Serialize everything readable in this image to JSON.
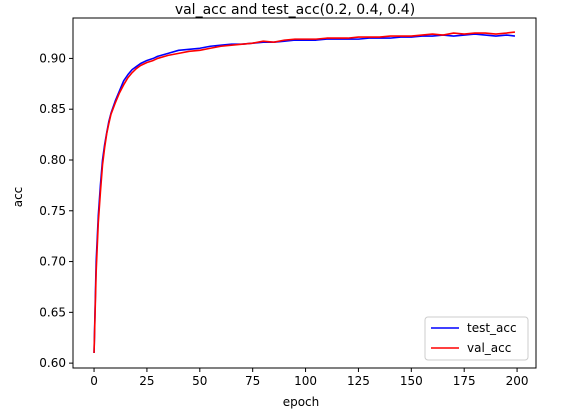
{
  "chart_data": {
    "type": "line",
    "title": "val_acc and test_acc(0.2, 0.4, 0.4)",
    "xlabel": "epoch",
    "ylabel": "acc",
    "xlim": [
      -9.95,
      208.95
    ],
    "ylim": [
      0.5952,
      0.9398
    ],
    "xticks": [
      0,
      25,
      50,
      75,
      100,
      125,
      150,
      175,
      200
    ],
    "xtick_labels": [
      "0",
      "25",
      "50",
      "75",
      "100",
      "125",
      "150",
      "175",
      "200"
    ],
    "yticks": [
      0.6,
      0.65,
      0.7,
      0.75,
      0.8,
      0.85,
      0.9
    ],
    "ytick_labels": [
      "0.60",
      "0.65",
      "0.70",
      "0.75",
      "0.80",
      "0.85",
      "0.90"
    ],
    "grid": false,
    "legend_position": "lower-right",
    "series": [
      {
        "name": "test_acc",
        "color": "#0000ff",
        "x": [
          0,
          1,
          2,
          3,
          4,
          5,
          6,
          7,
          8,
          10,
          12,
          14,
          16,
          18,
          20,
          22,
          25,
          28,
          30,
          35,
          40,
          45,
          50,
          55,
          60,
          65,
          70,
          75,
          80,
          85,
          90,
          95,
          100,
          105,
          110,
          115,
          120,
          125,
          130,
          135,
          140,
          145,
          150,
          155,
          160,
          165,
          170,
          175,
          180,
          185,
          190,
          195,
          199
        ],
        "y": [
          0.61,
          0.7,
          0.745,
          0.775,
          0.8,
          0.815,
          0.827,
          0.838,
          0.846,
          0.858,
          0.868,
          0.878,
          0.884,
          0.889,
          0.892,
          0.895,
          0.898,
          0.9,
          0.902,
          0.905,
          0.908,
          0.909,
          0.91,
          0.912,
          0.913,
          0.914,
          0.914,
          0.915,
          0.916,
          0.916,
          0.917,
          0.918,
          0.918,
          0.918,
          0.919,
          0.919,
          0.919,
          0.919,
          0.92,
          0.92,
          0.92,
          0.921,
          0.921,
          0.922,
          0.922,
          0.923,
          0.922,
          0.923,
          0.924,
          0.923,
          0.922,
          0.923,
          0.922
        ]
      },
      {
        "name": "val_acc",
        "color": "#ff0000",
        "x": [
          0,
          1,
          2,
          3,
          4,
          5,
          6,
          7,
          8,
          10,
          12,
          14,
          16,
          18,
          20,
          22,
          25,
          28,
          30,
          35,
          40,
          45,
          50,
          55,
          60,
          65,
          70,
          75,
          80,
          85,
          90,
          95,
          100,
          105,
          110,
          115,
          120,
          125,
          130,
          135,
          140,
          145,
          150,
          155,
          160,
          165,
          170,
          175,
          180,
          185,
          190,
          195,
          199
        ],
        "y": [
          0.61,
          0.69,
          0.738,
          0.768,
          0.795,
          0.812,
          0.826,
          0.836,
          0.845,
          0.856,
          0.866,
          0.874,
          0.881,
          0.886,
          0.89,
          0.893,
          0.896,
          0.898,
          0.9,
          0.903,
          0.905,
          0.907,
          0.908,
          0.91,
          0.912,
          0.913,
          0.914,
          0.915,
          0.917,
          0.916,
          0.918,
          0.919,
          0.919,
          0.919,
          0.92,
          0.92,
          0.92,
          0.921,
          0.921,
          0.921,
          0.922,
          0.922,
          0.922,
          0.923,
          0.924,
          0.923,
          0.925,
          0.924,
          0.925,
          0.925,
          0.924,
          0.925,
          0.926
        ]
      }
    ]
  }
}
